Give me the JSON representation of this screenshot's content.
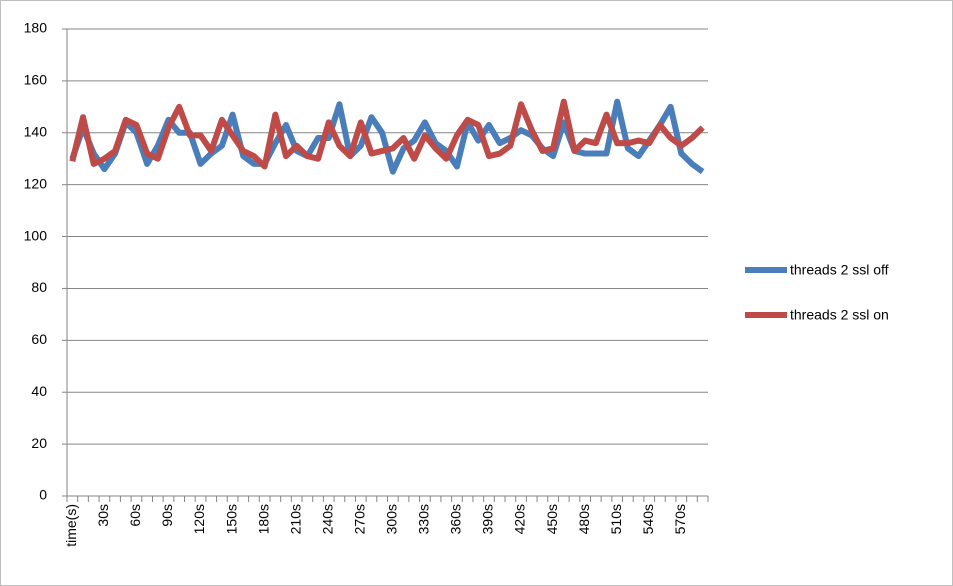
{
  "chart_data": {
    "type": "line",
    "categories": [
      "time(s)",
      null,
      null,
      "30s",
      null,
      null,
      "60s",
      null,
      null,
      "90s",
      null,
      null,
      "120s",
      null,
      null,
      "150s",
      null,
      null,
      "180s",
      null,
      null,
      "210s",
      null,
      null,
      "240s",
      null,
      null,
      "270s",
      null,
      null,
      "300s",
      null,
      null,
      "330s",
      null,
      null,
      "360s",
      null,
      null,
      "390s",
      null,
      null,
      "420s",
      null,
      null,
      "450s",
      null,
      null,
      "480s",
      null,
      null,
      "510s",
      null,
      null,
      "540s",
      null,
      null,
      "570s",
      null,
      null
    ],
    "series": [
      {
        "name": "threads 2 ssl off",
        "color": "#4a7ebb",
        "values": [
          130,
          142,
          132,
          126,
          132,
          144,
          140,
          128,
          135,
          145,
          140,
          140,
          128,
          132,
          135,
          147,
          131,
          128,
          128,
          136,
          143,
          133,
          131,
          138,
          138,
          151,
          131,
          135,
          146,
          140,
          125,
          134,
          137,
          144,
          136,
          133,
          127,
          144,
          137,
          143,
          136,
          138,
          141,
          139,
          134,
          131,
          144,
          133,
          132,
          132,
          132,
          152,
          134,
          131,
          137,
          143,
          150,
          132,
          128,
          125
        ]
      },
      {
        "name": "threads 2 ssl on",
        "color": "#be4b48",
        "values": [
          129,
          146,
          128,
          130,
          133,
          145,
          143,
          132,
          130,
          142,
          150,
          139,
          139,
          133,
          145,
          139,
          133,
          131,
          127,
          147,
          131,
          135,
          131,
          130,
          144,
          135,
          131,
          144,
          132,
          133,
          134,
          138,
          130,
          139,
          134,
          130,
          139,
          145,
          143,
          131,
          132,
          135,
          151,
          141,
          133,
          134,
          152,
          133,
          137,
          136,
          147,
          136,
          136,
          137,
          136,
          143,
          138,
          135,
          138,
          142
        ]
      }
    ],
    "ylim": [
      0,
      180
    ],
    "yticks": [
      0,
      20,
      40,
      60,
      80,
      100,
      120,
      140,
      160,
      180
    ],
    "grid": true,
    "legend": "right"
  }
}
